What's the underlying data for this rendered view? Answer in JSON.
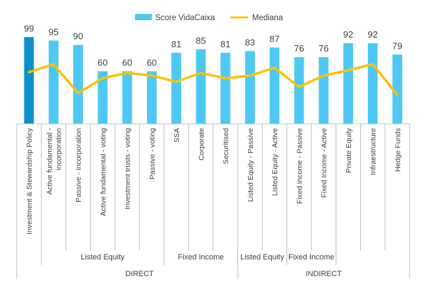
{
  "chart_data": {
    "type": "bar",
    "title": "",
    "xlabel": "",
    "ylabel": "",
    "ylim": [
      0,
      100
    ],
    "grid": false,
    "legend_position": "top-center",
    "categories": [
      "Investment & Stewardship Policy",
      "Active fundamental - incorporation",
      "Passive - incorporation",
      "Active fundamental - voting",
      "Investment trusts - voting",
      "Passive - voting",
      "SSA",
      "Corporate",
      "Securitised",
      "Listed Equity - Passive",
      "Listed Equity - Active",
      "Fixed Income - Passive",
      "Fixed Income - Active",
      "Private Equity",
      "Infraestructure",
      "Hedge Funds"
    ],
    "category_lines": [
      [
        "Investment & Stewardship Policy"
      ],
      [
        "Active fundamental -",
        "incorporation"
      ],
      [
        "Passive - incorporation"
      ],
      [
        "Active fundamental - voting"
      ],
      [
        "Investment trusts - voting"
      ],
      [
        "Passive - voting"
      ],
      [
        "SSA"
      ],
      [
        "Corporate"
      ],
      [
        "Securitised"
      ],
      [
        "Listed Equity - Passive"
      ],
      [
        "Listed Equity - Active"
      ],
      [
        "Fixed Income - Passive"
      ],
      [
        "Fixed Income - Active"
      ],
      [
        "Private Equity"
      ],
      [
        "Infraestructure"
      ],
      [
        "Hedge Funds"
      ]
    ],
    "series": [
      {
        "name": "Score VidaCaixa",
        "type": "bar",
        "values": [
          99,
          95,
          90,
          60,
          60,
          60,
          81,
          85,
          81,
          83,
          87,
          76,
          76,
          92,
          92,
          79
        ]
      },
      {
        "name": "Mediana",
        "type": "line",
        "values": [
          59,
          68,
          35,
          52,
          58,
          55,
          48,
          58,
          52,
          55,
          64,
          42,
          55,
          61,
          68,
          33
        ]
      }
    ],
    "colors": {
      "bar": "#4DC8F5",
      "bar_highlight": "#0D8FCE",
      "line": "#FFC000",
      "text": "#404040",
      "axis": "#BFBFBF"
    },
    "highlight_index": 0,
    "group_labels": [
      {
        "label": "Listed Equity",
        "from": 1,
        "to": 5
      },
      {
        "label": "Fixed Income",
        "from": 6,
        "to": 8
      },
      {
        "label": "Listed Equity",
        "from": 9,
        "to": 10
      },
      {
        "label": "Fixed Income",
        "from": 11,
        "to": 12
      }
    ],
    "supergroup_labels": [
      {
        "label": "DIRECT",
        "from": 1,
        "to": 8
      },
      {
        "label": "INDIRECT",
        "from": 9,
        "to": 15
      }
    ]
  }
}
